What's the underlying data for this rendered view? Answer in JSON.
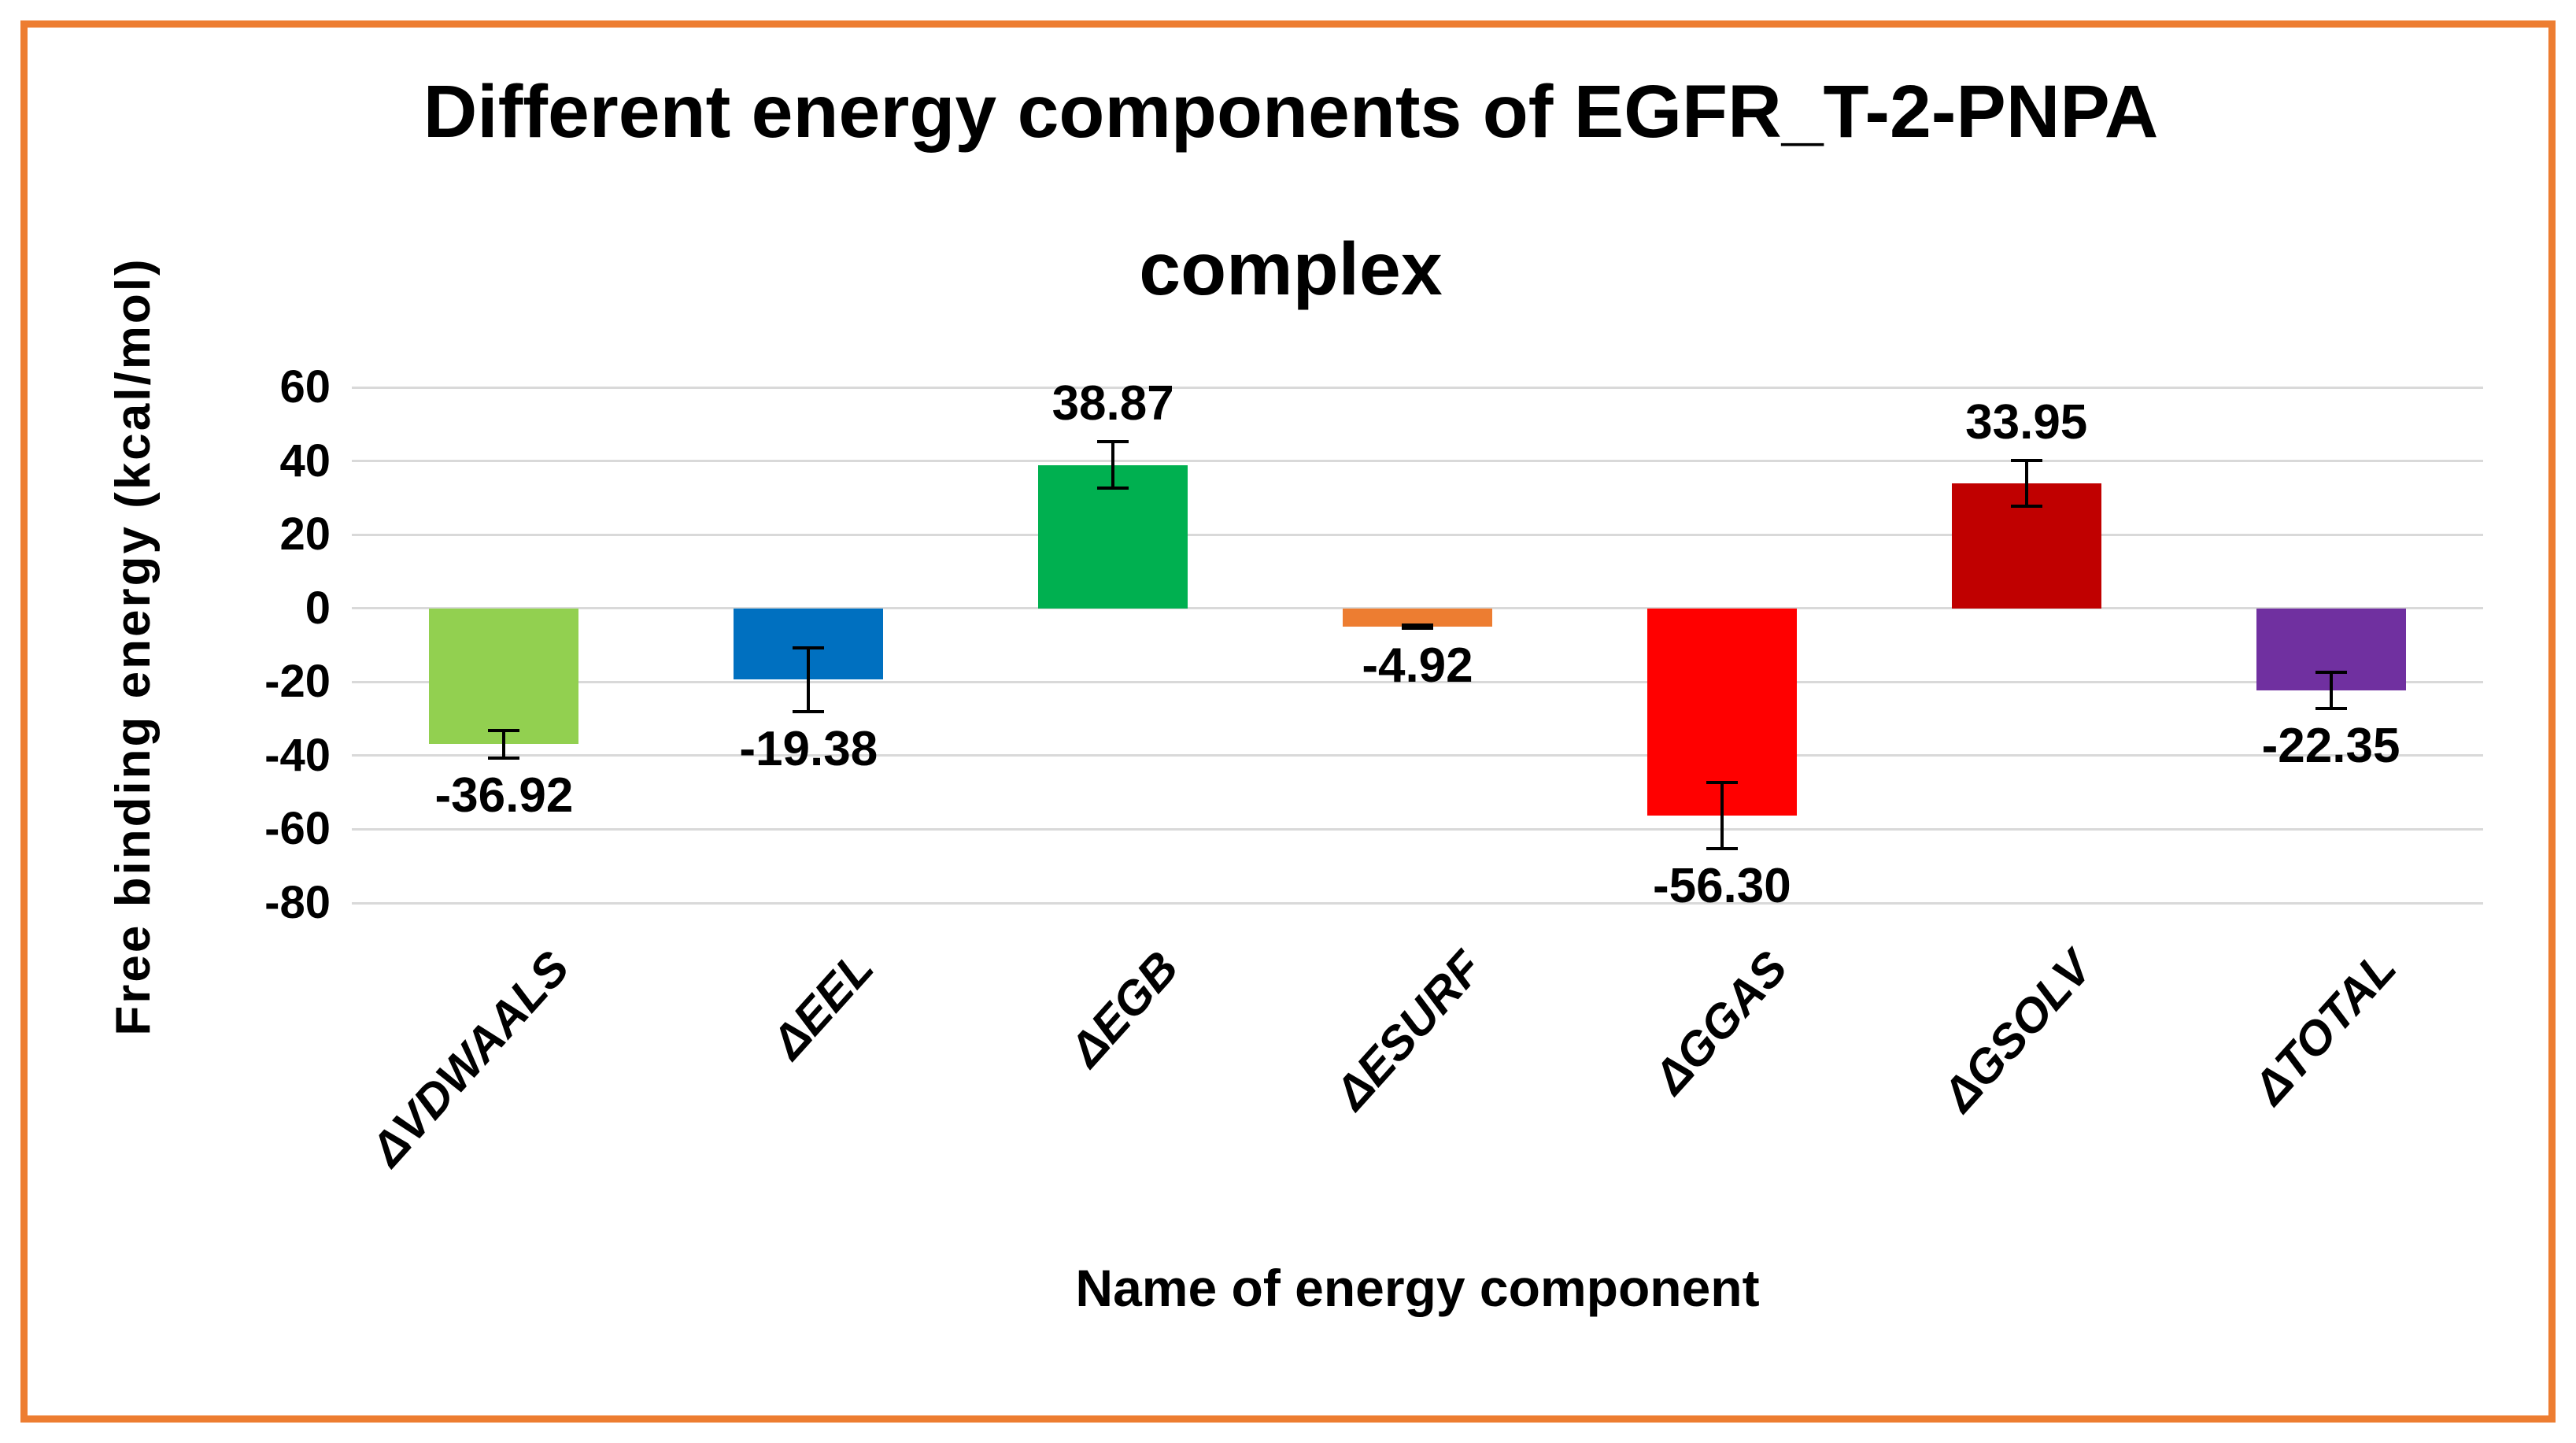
{
  "frame": {
    "border_color": "#ED7D31"
  },
  "chart_data": {
    "type": "bar",
    "title": "Different energy components of EGFR_T-2-PNPA complex",
    "title_line1": "Different energy components of EGFR_T-2-PNPA",
    "title_line2": "complex",
    "xlabel": "Name of energy component",
    "ylabel": "Free binding energy (kcal/mol)",
    "ylim": [
      -80,
      60
    ],
    "ytick_interval": 20,
    "yticks": [
      "60",
      "40",
      "20",
      "0",
      "-20",
      "-40",
      "-60",
      "-80"
    ],
    "ytick_values": [
      60,
      40,
      20,
      0,
      -20,
      -40,
      -60,
      -80
    ],
    "grid": true,
    "gridline_color": "#D9D9D9",
    "legend": "none",
    "categories": [
      "ΔVDWAALS",
      "ΔEEL",
      "ΔEGB",
      "ΔESURF",
      "ΔGGAS",
      "ΔGSOLV",
      "ΔTOTAL"
    ],
    "values": [
      -36.92,
      -19.38,
      38.87,
      -4.92,
      -56.3,
      33.95,
      -22.35
    ],
    "value_labels": [
      "-36.92",
      "-19.38",
      "38.87",
      "-4.92",
      "-56.30",
      "33.95",
      "-22.35"
    ],
    "errors": [
      3.7,
      8.6,
      6.3,
      0.4,
      8.9,
      6.2,
      4.9
    ],
    "bar_colors": [
      "#92D050",
      "#0070C0",
      "#00B050",
      "#ED7D31",
      "#FF0000",
      "#C00000",
      "#7030A0"
    ],
    "error_bar_color": "#000000"
  }
}
